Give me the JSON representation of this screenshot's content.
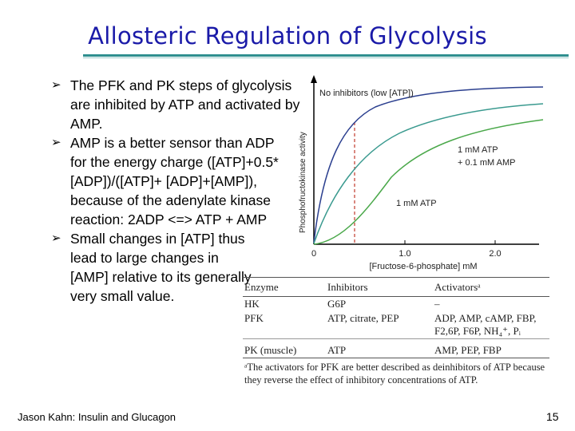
{
  "title": "Allosteric Regulation of Glycolysis",
  "bullets": [
    "The PFK and PK steps of glycolysis are inhibited by ATP and activated by AMP.",
    "AMP is a better sensor than ADP for the energy charge ([ATP]+0.5*[ADP])/([ATP]+ [ADP]+[AMP]), because of the adenylate kinase reaction: 2ADP <=> ATP + AMP",
    "Small changes in [ATP] thus lead to large changes in [AMP] relative to its generally very small value."
  ],
  "figure": {
    "y_axis_label": "Phosphofructokinase activity",
    "x_axis_label": "[Fructose-6-phosphate] mM",
    "x_ticks": [
      "0",
      "1.0",
      "2.0"
    ],
    "curve_labels": {
      "no_inhibitors": "No inhibitors (low [ATP])",
      "atp_amp_line1": "1 mM  ATP",
      "atp_amp_line2": "+ 0.1 mM  AMP",
      "atp_only": "1 mM  ATP"
    },
    "colors": {
      "no_inhibitors": "#2b3f8f",
      "atp_amp": "#3a9a8f",
      "atp_only": "#4aa84a",
      "dashed": "#c0392b"
    }
  },
  "table": {
    "headers": [
      "Enzyme",
      "Inhibitors",
      "Activatorsᵃ"
    ],
    "rows": [
      {
        "enzyme": "HK",
        "inhibitors": "G6P",
        "activators": "–"
      },
      {
        "enzyme": "PFK",
        "inhibitors": "ATP, citrate, PEP",
        "activators": "ADP, AMP, cAMP, FBP, F2,6P, F6P, NH₄⁺, Pᵢ"
      },
      {
        "enzyme": "PK (muscle)",
        "inhibitors": "ATP",
        "activators": "AMP, PEP, FBP"
      }
    ],
    "footnote": "ᵃThe activators for PFK are better described as deinhibitors of ATP because they reverse the effect of inhibitory concentrations of ATP."
  },
  "footer": "Jason Kahn: Insulin and Glucagon",
  "page_number": "15"
}
